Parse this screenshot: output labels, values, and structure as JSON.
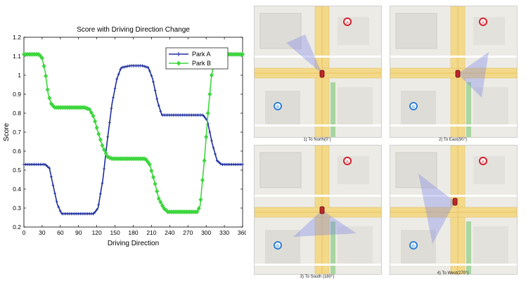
{
  "chart_data": {
    "type": "line",
    "title": "Score with Driving Direction Change",
    "xlabel": "Driving Direction",
    "ylabel": "Score",
    "xlim": [
      0,
      360
    ],
    "ylim": [
      0.2,
      1.2
    ],
    "xticks": [
      0,
      30,
      60,
      90,
      120,
      150,
      180,
      210,
      240,
      270,
      300,
      330,
      360
    ],
    "yticks": [
      0.2,
      0.3,
      0.4,
      0.5,
      0.6,
      0.7,
      0.8,
      0.9,
      1.0,
      1.1,
      1.2
    ],
    "ytick_labels": [
      "0.2",
      "0.3",
      "0.4",
      "0.5",
      "0.6",
      "0.7",
      "0.8",
      "0.9",
      "1",
      "1.1",
      "1.2"
    ],
    "grid": false,
    "legend_position": "top-right",
    "series": [
      {
        "name": "Park A",
        "color": "#1f2f9e",
        "marker": "cross",
        "points": [
          [
            0,
            0.53
          ],
          [
            20,
            0.53
          ],
          [
            35,
            0.53
          ],
          [
            42,
            0.51
          ],
          [
            48,
            0.42
          ],
          [
            55,
            0.32
          ],
          [
            62,
            0.27
          ],
          [
            75,
            0.27
          ],
          [
            100,
            0.27
          ],
          [
            115,
            0.27
          ],
          [
            122,
            0.3
          ],
          [
            130,
            0.45
          ],
          [
            137,
            0.65
          ],
          [
            145,
            0.85
          ],
          [
            153,
            0.98
          ],
          [
            160,
            1.04
          ],
          [
            175,
            1.05
          ],
          [
            195,
            1.05
          ],
          [
            205,
            1.04
          ],
          [
            212,
            0.98
          ],
          [
            220,
            0.86
          ],
          [
            227,
            0.79
          ],
          [
            240,
            0.79
          ],
          [
            270,
            0.79
          ],
          [
            295,
            0.79
          ],
          [
            302,
            0.76
          ],
          [
            310,
            0.64
          ],
          [
            318,
            0.55
          ],
          [
            325,
            0.53
          ],
          [
            345,
            0.53
          ],
          [
            360,
            0.53
          ]
        ]
      },
      {
        "name": "Park B",
        "color": "#3dd63d",
        "marker": "diamond",
        "points": [
          [
            0,
            1.11
          ],
          [
            15,
            1.11
          ],
          [
            25,
            1.11
          ],
          [
            30,
            1.09
          ],
          [
            35,
            1.02
          ],
          [
            40,
            0.9
          ],
          [
            45,
            0.85
          ],
          [
            50,
            0.83
          ],
          [
            75,
            0.83
          ],
          [
            100,
            0.83
          ],
          [
            108,
            0.82
          ],
          [
            115,
            0.78
          ],
          [
            122,
            0.7
          ],
          [
            130,
            0.62
          ],
          [
            138,
            0.57
          ],
          [
            145,
            0.56
          ],
          [
            175,
            0.56
          ],
          [
            200,
            0.56
          ],
          [
            207,
            0.53
          ],
          [
            215,
            0.44
          ],
          [
            222,
            0.35
          ],
          [
            230,
            0.3
          ],
          [
            237,
            0.28
          ],
          [
            260,
            0.28
          ],
          [
            285,
            0.28
          ],
          [
            290,
            0.31
          ],
          [
            297,
            0.55
          ],
          [
            303,
            0.8
          ],
          [
            309,
            1.0
          ],
          [
            315,
            1.09
          ],
          [
            322,
            1.11
          ],
          [
            345,
            1.11
          ],
          [
            360,
            1.11
          ]
        ]
      }
    ]
  },
  "map_panels": [
    {
      "caption": "1) To North(0°)"
    },
    {
      "caption": "2) To East(90°)"
    },
    {
      "caption": "3) To South (180°)"
    },
    {
      "caption": "4) To West(270°)"
    }
  ],
  "marker_labels": {
    "a": "A",
    "b": "B"
  }
}
